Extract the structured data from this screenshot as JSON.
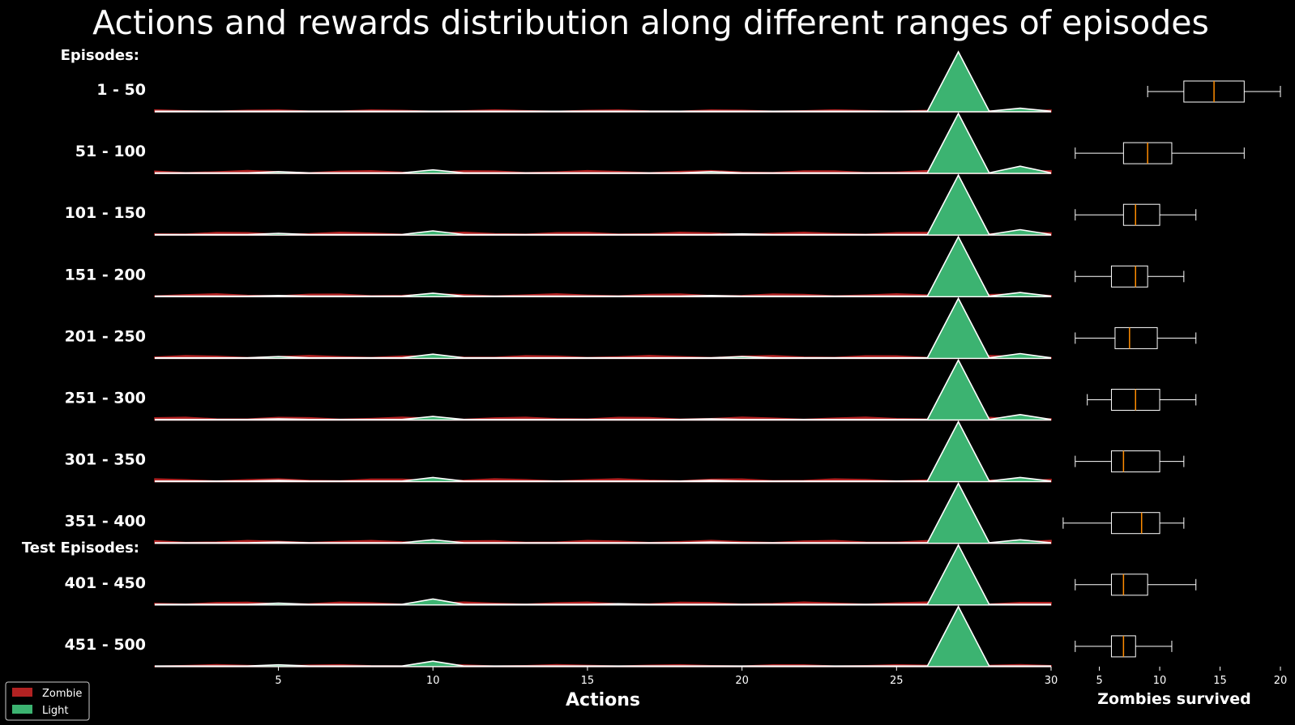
{
  "chart_data": {
    "type": "ridgeline+boxplot",
    "title": "Actions and rewards distribution along different ranges of episodes",
    "section_labels": {
      "train": "Episodes:",
      "test": "Test Episodes:"
    },
    "ridge": {
      "xlabel": "Actions",
      "xlim": [
        1,
        30
      ],
      "xticks": [
        5,
        10,
        15,
        20,
        25,
        30
      ],
      "series": [
        {
          "name": "Zombie",
          "color": "#b22222"
        },
        {
          "name": "Light",
          "color": "#3cb371"
        }
      ]
    },
    "boxplot": {
      "xlabel": "Zombies survived",
      "xlim": [
        1,
        20
      ],
      "xticks": [
        5,
        10,
        15,
        20
      ],
      "median_color": "#ff8c00"
    },
    "rows": [
      {
        "label": "1 - 50",
        "light": [
          [
            27,
            1.0
          ],
          [
            29,
            0.06
          ],
          [
            10,
            0.01
          ]
        ],
        "zombie_level": 0.02,
        "box": {
          "whislo": 9,
          "q1": 12,
          "med": 14.5,
          "q3": 17,
          "whishi": 20
        }
      },
      {
        "label": "51 - 100",
        "light": [
          [
            27,
            1.0
          ],
          [
            29,
            0.12
          ],
          [
            10,
            0.06
          ],
          [
            5,
            0.03
          ],
          [
            19,
            0.03
          ]
        ],
        "zombie_level": 0.03,
        "box": {
          "whislo": 3,
          "q1": 7,
          "med": 9,
          "q3": 11,
          "whishi": 17
        }
      },
      {
        "label": "101 - 150",
        "light": [
          [
            27,
            1.0
          ],
          [
            29,
            0.09
          ],
          [
            10,
            0.07
          ],
          [
            5,
            0.03
          ],
          [
            20,
            0.02
          ]
        ],
        "zombie_level": 0.03,
        "box": {
          "whislo": 3,
          "q1": 7,
          "med": 8,
          "q3": 10,
          "whishi": 13
        }
      },
      {
        "label": "151 - 200",
        "light": [
          [
            27,
            1.0
          ],
          [
            29,
            0.07
          ],
          [
            10,
            0.06
          ],
          [
            5,
            0.02
          ],
          [
            19,
            0.02
          ]
        ],
        "zombie_level": 0.03,
        "box": {
          "whislo": 3,
          "q1": 6,
          "med": 8,
          "q3": 9,
          "whishi": 12
        }
      },
      {
        "label": "201 - 250",
        "light": [
          [
            27,
            1.0
          ],
          [
            29,
            0.08
          ],
          [
            10,
            0.07
          ],
          [
            5,
            0.03
          ],
          [
            20,
            0.03
          ]
        ],
        "zombie_level": 0.03,
        "box": {
          "whislo": 3,
          "q1": 6.3,
          "med": 7.5,
          "q3": 9.8,
          "whishi": 13
        }
      },
      {
        "label": "251 - 300",
        "light": [
          [
            27,
            1.0
          ],
          [
            29,
            0.09
          ],
          [
            10,
            0.06
          ],
          [
            5,
            0.02
          ],
          [
            19,
            0.02
          ]
        ],
        "zombie_level": 0.03,
        "box": {
          "whislo": 4,
          "q1": 6,
          "med": 8,
          "q3": 10,
          "whishi": 13
        }
      },
      {
        "label": "301 - 350",
        "light": [
          [
            27,
            1.0
          ],
          [
            29,
            0.07
          ],
          [
            10,
            0.07
          ],
          [
            5,
            0.02
          ],
          [
            19,
            0.02
          ]
        ],
        "zombie_level": 0.03,
        "box": {
          "whislo": 3,
          "q1": 6,
          "med": 7,
          "q3": 10,
          "whishi": 12
        }
      },
      {
        "label": "351 - 400",
        "light": [
          [
            27,
            1.0
          ],
          [
            29,
            0.06
          ],
          [
            10,
            0.06
          ],
          [
            5,
            0.02
          ],
          [
            19,
            0.02
          ]
        ],
        "zombie_level": 0.03,
        "box": {
          "whislo": 2,
          "q1": 6,
          "med": 8.5,
          "q3": 10,
          "whishi": 12
        }
      },
      {
        "label": "401 - 450",
        "light": [
          [
            27,
            1.0
          ],
          [
            10,
            0.1
          ],
          [
            5,
            0.03
          ],
          [
            16,
            0.02
          ]
        ],
        "zombie_level": 0.03,
        "box": {
          "whislo": 3,
          "q1": 6,
          "med": 7,
          "q3": 9,
          "whishi": 13
        }
      },
      {
        "label": "451 - 500",
        "light": [
          [
            27,
            1.0
          ],
          [
            10,
            0.09
          ],
          [
            5,
            0.03
          ]
        ],
        "zombie_level": 0.02,
        "box": {
          "whislo": 3,
          "q1": 6,
          "med": 7,
          "q3": 8,
          "whishi": 11
        }
      }
    ]
  }
}
